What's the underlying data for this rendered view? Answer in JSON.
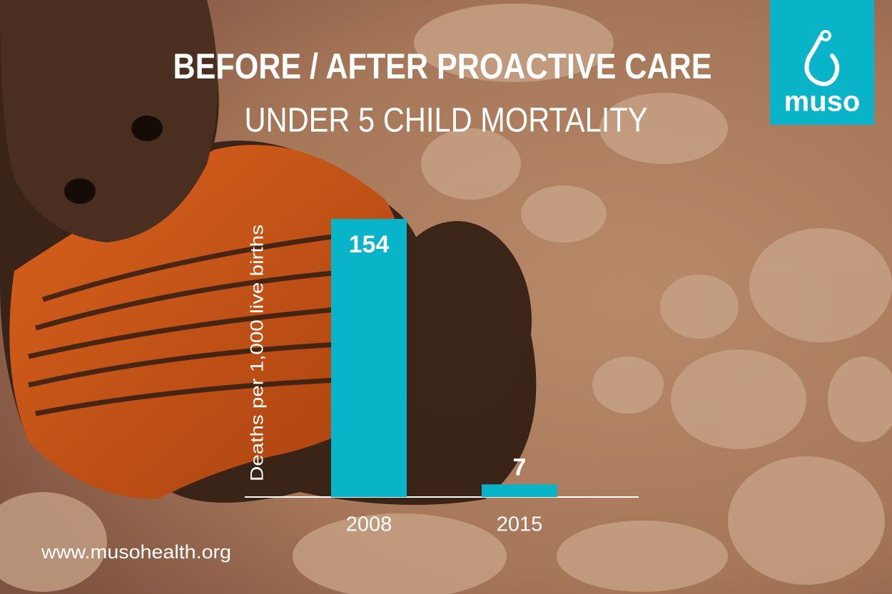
{
  "chart_data": {
    "type": "bar",
    "title": "BEFORE / AFTER PROACTIVE CARE",
    "subtitle": "UNDER 5 CHILD MORTALITY",
    "y_label": "Deaths per 1,000 live births",
    "categories": [
      "2008",
      "2015"
    ],
    "values": [
      154,
      7
    ],
    "color": "#0ab4c8"
  },
  "logo": "muso",
  "website": "www.musohealth.org"
}
